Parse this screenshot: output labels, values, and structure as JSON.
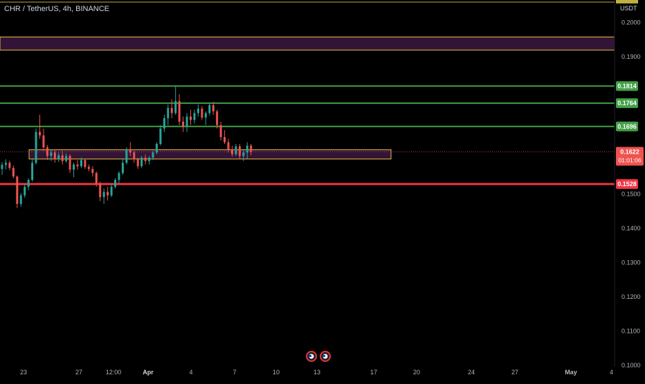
{
  "header": {
    "symbol_title": "CHR / TetherUS, 4h, BINANCE",
    "currency": "USDT"
  },
  "colors": {
    "background": "#000000",
    "up": "#26a69a",
    "down": "#ef5350",
    "resistance": "#43a047",
    "support": "#f23645",
    "zone_border": "#f0c040",
    "zone_fill": "#3a1740",
    "axis_text": "#b2b5be"
  },
  "chart_data": {
    "type": "candlestick",
    "ylim": [
      0.0995,
      0.2065
    ],
    "y_ticks": [
      "0.2000",
      "0.1900",
      "0.1500",
      "0.1400",
      "0.1300",
      "0.1200",
      "0.1100",
      "0.1000"
    ],
    "x_ticks": [
      "23",
      "27",
      "12:00",
      "Apr",
      "4",
      "7",
      "10",
      "13",
      "17",
      "20",
      "24",
      "27",
      "May",
      "4"
    ],
    "horizontal_levels": [
      {
        "price": 0.1814,
        "label": "0.1814",
        "kind": "resistance"
      },
      {
        "price": 0.1764,
        "label": "0.1764",
        "kind": "resistance"
      },
      {
        "price": 0.1696,
        "label": "0.1696",
        "kind": "resistance"
      },
      {
        "price": 0.1528,
        "label": "0.1528",
        "kind": "support"
      },
      {
        "price": 0.2059,
        "label": "",
        "kind": "top-line"
      }
    ],
    "zones": [
      {
        "from": 0.1919,
        "to": 0.1957,
        "span": "full-width"
      },
      {
        "from": 0.1601,
        "to": 0.1628,
        "span": "partial"
      }
    ],
    "current_price": {
      "label": "0.1622",
      "countdown": "01:01:06"
    },
    "event_markers": 2,
    "ohlc": [
      [
        0.1572,
        0.1592,
        0.1555,
        0.1584
      ],
      [
        0.1584,
        0.16,
        0.1571,
        0.159
      ],
      [
        0.159,
        0.1596,
        0.1568,
        0.1575
      ],
      [
        0.1575,
        0.1582,
        0.1545,
        0.155
      ],
      [
        0.155,
        0.1553,
        0.1458,
        0.147
      ],
      [
        0.147,
        0.1502,
        0.1462,
        0.1495
      ],
      [
        0.1495,
        0.1528,
        0.1488,
        0.152
      ],
      [
        0.152,
        0.1545,
        0.151,
        0.154
      ],
      [
        0.154,
        0.16,
        0.1535,
        0.159
      ],
      [
        0.159,
        0.169,
        0.1585,
        0.168
      ],
      [
        0.168,
        0.173,
        0.166,
        0.167
      ],
      [
        0.167,
        0.169,
        0.1625,
        0.1635
      ],
      [
        0.1635,
        0.1642,
        0.1598,
        0.161
      ],
      [
        0.161,
        0.163,
        0.1595,
        0.162
      ],
      [
        0.162,
        0.1628,
        0.159,
        0.16
      ],
      [
        0.16,
        0.162,
        0.1592,
        0.1612
      ],
      [
        0.1612,
        0.1625,
        0.1585,
        0.1595
      ],
      [
        0.1595,
        0.1618,
        0.159,
        0.161
      ],
      [
        0.161,
        0.1615,
        0.156,
        0.157
      ],
      [
        0.157,
        0.159,
        0.1548,
        0.1585
      ],
      [
        0.1585,
        0.1598,
        0.157,
        0.158
      ],
      [
        0.158,
        0.1605,
        0.1575,
        0.1598
      ],
      [
        0.1598,
        0.1602,
        0.1572,
        0.1578
      ],
      [
        0.1578,
        0.1585,
        0.1565,
        0.1572
      ],
      [
        0.1572,
        0.158,
        0.155,
        0.156
      ],
      [
        0.156,
        0.1565,
        0.152,
        0.153
      ],
      [
        0.153,
        0.1535,
        0.1478,
        0.149
      ],
      [
        0.149,
        0.1515,
        0.147,
        0.1505
      ],
      [
        0.1505,
        0.152,
        0.148,
        0.1495
      ],
      [
        0.1495,
        0.1528,
        0.149,
        0.152
      ],
      [
        0.152,
        0.1545,
        0.1515,
        0.154
      ],
      [
        0.154,
        0.1565,
        0.153,
        0.156
      ],
      [
        0.156,
        0.16,
        0.1555,
        0.159
      ],
      [
        0.159,
        0.1635,
        0.1585,
        0.163
      ],
      [
        0.163,
        0.165,
        0.161,
        0.162
      ],
      [
        0.162,
        0.1625,
        0.159,
        0.16
      ],
      [
        0.16,
        0.1605,
        0.1572,
        0.158
      ],
      [
        0.158,
        0.161,
        0.1575,
        0.1605
      ],
      [
        0.1605,
        0.1615,
        0.1585,
        0.1595
      ],
      [
        0.1595,
        0.161,
        0.1585,
        0.1605
      ],
      [
        0.1605,
        0.1625,
        0.1598,
        0.162
      ],
      [
        0.162,
        0.165,
        0.1615,
        0.1645
      ],
      [
        0.1645,
        0.17,
        0.164,
        0.169
      ],
      [
        0.169,
        0.173,
        0.168,
        0.172
      ],
      [
        0.172,
        0.176,
        0.17,
        0.175
      ],
      [
        0.175,
        0.1775,
        0.172,
        0.1735
      ],
      [
        0.1735,
        0.1815,
        0.173,
        0.177
      ],
      [
        0.177,
        0.179,
        0.17,
        0.171
      ],
      [
        0.171,
        0.1725,
        0.168,
        0.1695
      ],
      [
        0.1695,
        0.1735,
        0.168,
        0.1725
      ],
      [
        0.1725,
        0.1745,
        0.17,
        0.1715
      ],
      [
        0.1715,
        0.1745,
        0.1705,
        0.1735
      ],
      [
        0.1735,
        0.176,
        0.1725,
        0.1748
      ],
      [
        0.1748,
        0.1755,
        0.1715,
        0.1722
      ],
      [
        0.1722,
        0.174,
        0.17,
        0.1735
      ],
      [
        0.1735,
        0.1765,
        0.1728,
        0.1758
      ],
      [
        0.1758,
        0.1768,
        0.173,
        0.174
      ],
      [
        0.174,
        0.1745,
        0.169,
        0.17
      ],
      [
        0.17,
        0.171,
        0.1655,
        0.1665
      ],
      [
        0.1665,
        0.1685,
        0.1645,
        0.165
      ],
      [
        0.165,
        0.166,
        0.162,
        0.1628
      ],
      [
        0.1628,
        0.164,
        0.1608,
        0.1615
      ],
      [
        0.1615,
        0.1645,
        0.161,
        0.1638
      ],
      [
        0.1638,
        0.1645,
        0.16,
        0.161
      ],
      [
        0.161,
        0.1628,
        0.1595,
        0.162
      ],
      [
        0.162,
        0.165,
        0.1602,
        0.164
      ],
      [
        0.164,
        0.1645,
        0.1612,
        0.1622
      ]
    ]
  }
}
